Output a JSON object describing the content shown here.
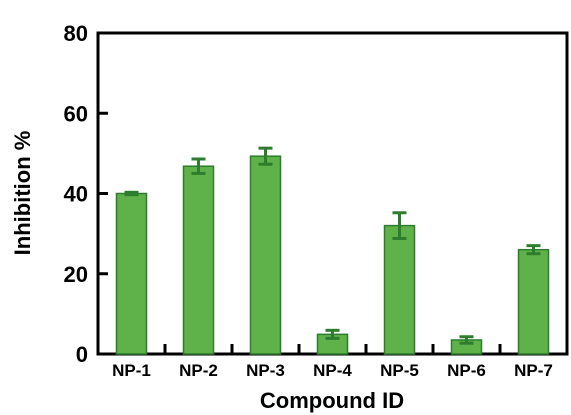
{
  "chart_data": {
    "type": "bar",
    "title": "",
    "xlabel": "Compound ID",
    "ylabel": "Inhibition %",
    "ylim": [
      0,
      80
    ],
    "yticks": [
      0,
      20,
      40,
      60,
      80
    ],
    "categories": [
      "NP-1",
      "NP-2",
      "NP-3",
      "NP-4",
      "NP-5",
      "NP-6",
      "NP-7"
    ],
    "values": [
      40,
      46.8,
      49.3,
      4.9,
      32,
      3.5,
      26
    ],
    "errors": [
      0.3,
      1.8,
      2.0,
      1.0,
      3.2,
      0.8,
      1.0
    ],
    "bar_color": "#5fb14a",
    "bar_edge_color": "#2e7d2e",
    "error_color": "#2e7d2e",
    "grid": false,
    "legend": "none"
  }
}
